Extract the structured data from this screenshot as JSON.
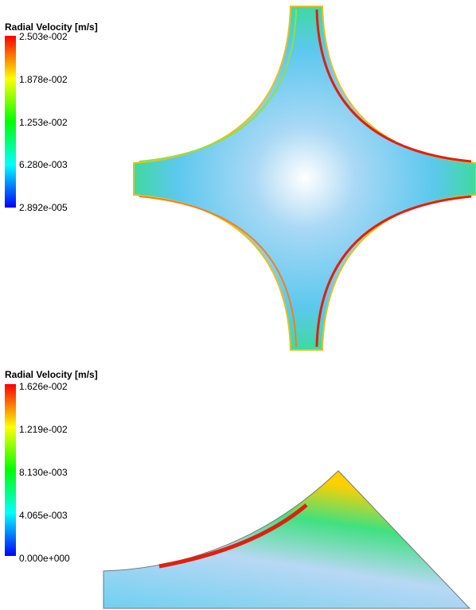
{
  "legends": [
    {
      "title": "Radial Velocity [m/s]",
      "labels": [
        "2.503e-002",
        "1.878e-002",
        "1.253e-002",
        "6.280e-003",
        "2.892e-005"
      ]
    },
    {
      "title": "Radial Velocity [m/s]",
      "labels": [
        "1.626e-002",
        "1.219e-002",
        "8.130e-003",
        "4.065e-003",
        "0.000e+000"
      ]
    }
  ]
}
